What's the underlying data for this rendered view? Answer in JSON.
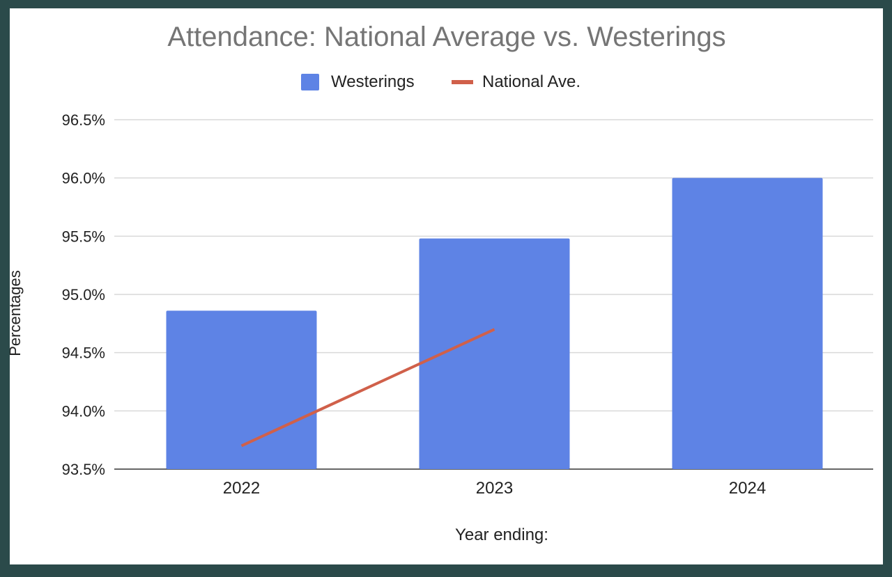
{
  "chart_data": {
    "type": "bar",
    "title": "Attendance: National Average vs. Westerings",
    "xlabel": "Year ending:",
    "ylabel": "Percentages",
    "categories": [
      "2022",
      "2023",
      "2024"
    ],
    "ylim": [
      93.5,
      96.5
    ],
    "yticks": [
      "93.5%",
      "94.0%",
      "94.5%",
      "95.0%",
      "95.5%",
      "96.0%",
      "96.5%"
    ],
    "ytick_values": [
      93.5,
      94.0,
      94.5,
      95.0,
      95.5,
      96.0,
      96.5
    ],
    "grid": true,
    "legend_position": "top-center",
    "series": [
      {
        "name": "Westerings",
        "type": "bar",
        "color": "#5e83e5",
        "values": [
          94.86,
          95.48,
          96.0
        ]
      },
      {
        "name": "National Ave.",
        "type": "line",
        "color": "#d0604a",
        "values": [
          93.7,
          94.7,
          null
        ]
      }
    ]
  },
  "colors": {
    "grid": "#d9d9d9",
    "axis": "#333333",
    "title": "#757575",
    "text": "#222222"
  }
}
